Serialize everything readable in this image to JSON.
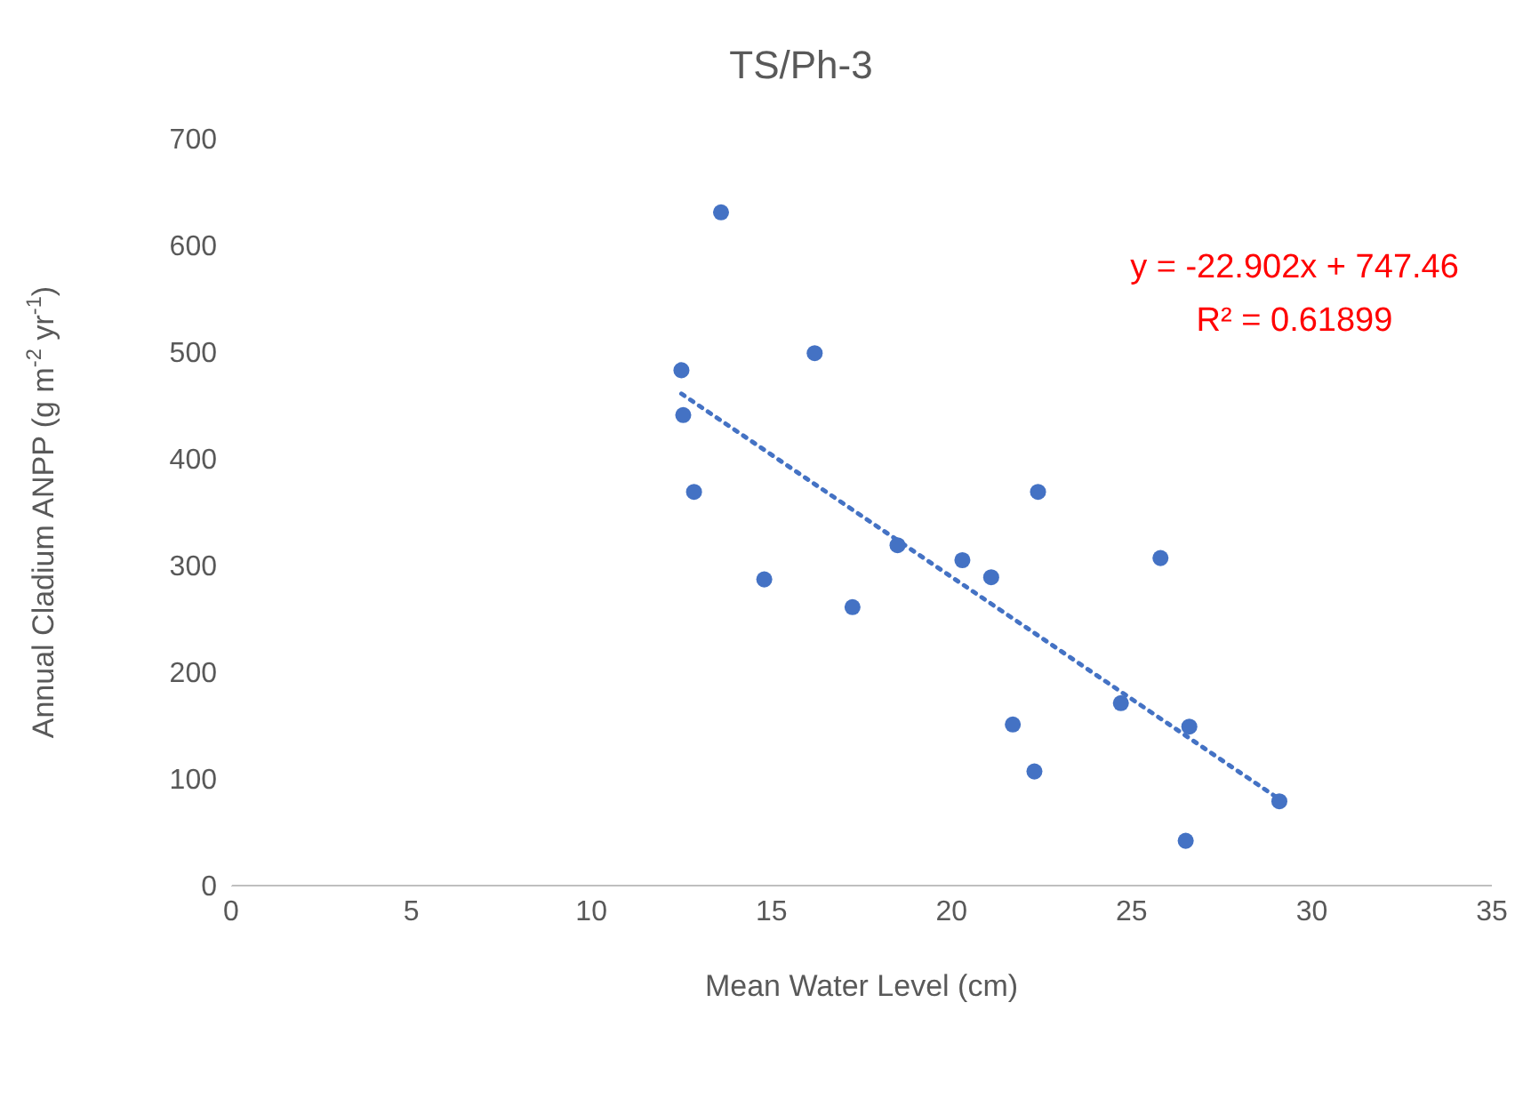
{
  "chart_data": {
    "type": "scatter",
    "title": "TS/Ph-3",
    "xlabel": "Mean Water Level (cm)",
    "ylabel": "Annual Cladium ANPP (g m$^{-2}$ yr$^{-1}$)",
    "marker": "circle",
    "xlim": [
      0,
      35
    ],
    "xticks": [
      0,
      5,
      10,
      15,
      20,
      25,
      30,
      35
    ],
    "ylim": [
      0,
      700
    ],
    "yticks": [
      0,
      100,
      200,
      300,
      400,
      500,
      600,
      700
    ],
    "series": [
      {
        "color": "#4472c4",
        "x": [
          13.6,
          16.2,
          12.5,
          12.55,
          12.85,
          22.4,
          18.5,
          20.3,
          21.1,
          14.8,
          17.25,
          25.8,
          24.7,
          26.6,
          29.1,
          21.7,
          22.3,
          26.5
        ],
        "values": [
          631,
          499,
          483,
          441,
          369,
          369,
          319,
          305,
          289,
          287,
          261,
          307,
          171,
          149,
          79,
          151,
          107,
          42
        ]
      },
      {
        "type": "line",
        "color": "#4472c4",
        "line_style": "dotted",
        "marker": "none",
        "x": [
          12.5,
          29.1
        ],
        "values": [
          461,
          81
        ]
      }
    ],
    "annotations": [
      "y = -22.902x + 747.46",
      "R² = 0.61899"
    ]
  }
}
